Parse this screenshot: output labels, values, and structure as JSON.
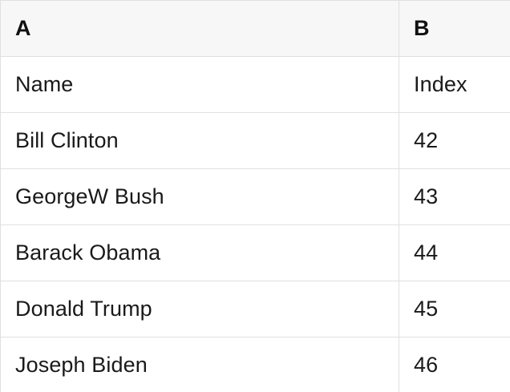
{
  "table": {
    "columns": [
      {
        "label": "A"
      },
      {
        "label": "B"
      }
    ],
    "rows": [
      {
        "a": "Name",
        "b": "Index"
      },
      {
        "a": "Bill Clinton",
        "b": "42"
      },
      {
        "a": "GeorgeW Bush",
        "b": "43"
      },
      {
        "a": "Barack Obama",
        "b": "44"
      },
      {
        "a": "Donald Trump",
        "b": "45"
      },
      {
        "a": "Joseph Biden",
        "b": "46"
      }
    ]
  },
  "colors": {
    "header_background": "#f7f7f7",
    "row_background": "#ffffff",
    "border": "#e0e0e0",
    "text": "#1a1a1a"
  }
}
